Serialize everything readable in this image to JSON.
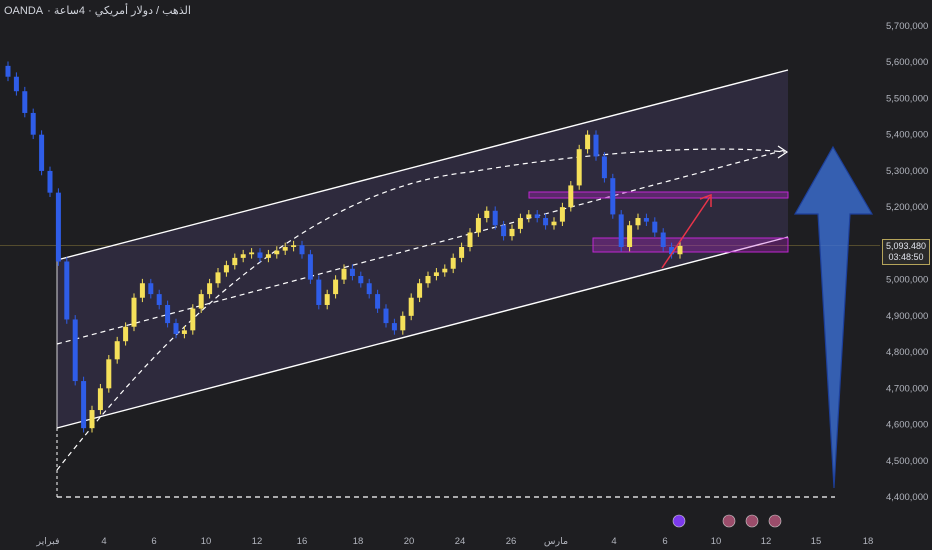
{
  "header": {
    "symbol": "OANDA",
    "title_rest": "· الذهب / دولار أمريكي · 4ساعة"
  },
  "current": {
    "price": "5,093.480",
    "timer": "03:48:50",
    "value": 5093.48
  },
  "colors": {
    "bg": "#1e1e21",
    "up": "#f5e05a",
    "down": "#2f5de8",
    "channel_fill": "#5a4a8a",
    "zone": "#c026d3",
    "arrow_up": "#3b6fd6",
    "arrow_red": "#e8344a"
  },
  "icons": [
    "lightning-icon",
    "us-flag-icon",
    "us-flag-icon",
    "us-flag-icon"
  ],
  "chart_data": {
    "type": "candlestick",
    "ylim": [
      4400,
      5700
    ],
    "y_ticks": [
      "5,700,000",
      "5,600,000",
      "5,500,000",
      "5,400,000",
      "5,300,000",
      "5,200,000",
      "5,100,000",
      "5,000,000",
      "4,900,000",
      "4,800,000",
      "4,700,000",
      "4,600,000",
      "4,500,000",
      "4,400,000"
    ],
    "y_values": [
      5700,
      5600,
      5500,
      5400,
      5300,
      5200,
      5100,
      5000,
      4900,
      4800,
      4700,
      4600,
      4500,
      4400
    ],
    "x_ticks": [
      "فبراير",
      "4",
      "6",
      "10",
      "12",
      "16",
      "18",
      "20",
      "24",
      "26",
      "مارس",
      "4",
      "6",
      "10",
      "12",
      "15",
      "18"
    ],
    "closes": [
      5560,
      5520,
      5460,
      5400,
      5300,
      5240,
      5050,
      4890,
      4720,
      4590,
      4640,
      4700,
      4780,
      4830,
      4870,
      4950,
      4990,
      4960,
      4930,
      4880,
      4850,
      4860,
      4920,
      4960,
      4990,
      5020,
      5040,
      5060,
      5070,
      5075,
      5060,
      5070,
      5080,
      5090,
      5095,
      5070,
      5000,
      4930,
      4960,
      5000,
      5030,
      5010,
      4990,
      4960,
      4920,
      4880,
      4860,
      4900,
      4950,
      4990,
      5010,
      5020,
      5030,
      5060,
      5090,
      5130,
      5170,
      5190,
      5150,
      5120,
      5140,
      5170,
      5180,
      5170,
      5150,
      5160,
      5200,
      5260,
      5360,
      5400,
      5340,
      5280,
      5180,
      5090,
      5150,
      5170,
      5160,
      5130,
      5090,
      5070,
      5093
    ],
    "annotations": [
      "ascending channel",
      "resistance zone",
      "support zone",
      "target arrow"
    ]
  }
}
